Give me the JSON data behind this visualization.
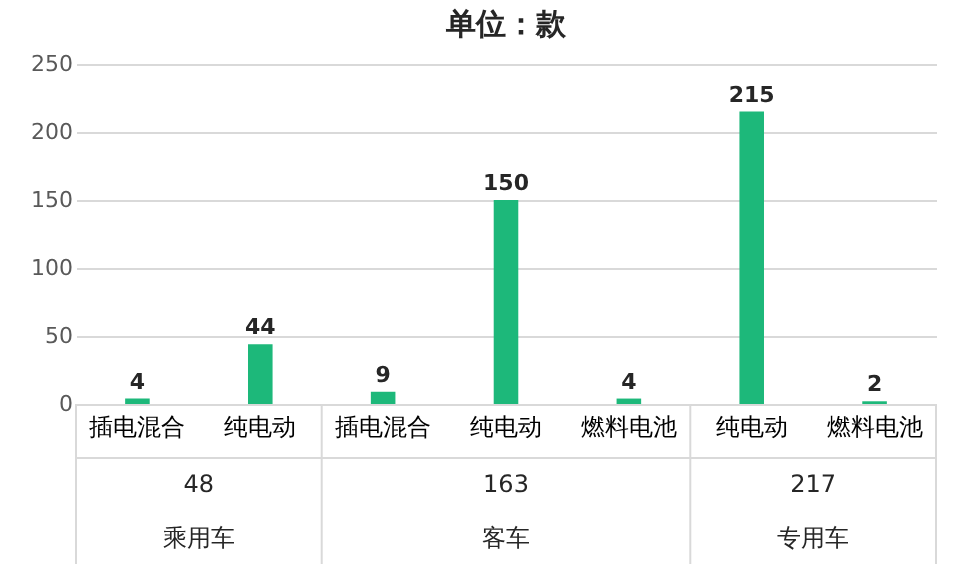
{
  "chart_data": {
    "type": "bar",
    "title": "单位：款",
    "categories": [
      "插电混合",
      "纯电动",
      "插电混合",
      "纯电动",
      "燃料电池",
      "纯电动",
      "燃料电池"
    ],
    "values": [
      4,
      44,
      9,
      150,
      4,
      215,
      2
    ],
    "color": "#1db87a",
    "ylim": [
      0,
      250
    ],
    "yticks": [
      0,
      50,
      100,
      150,
      200,
      250
    ],
    "grid": "y",
    "data_labels": true,
    "annotations": [
      "48",
      "乘用车",
      "163",
      "客车",
      "217",
      "专用车"
    ]
  }
}
